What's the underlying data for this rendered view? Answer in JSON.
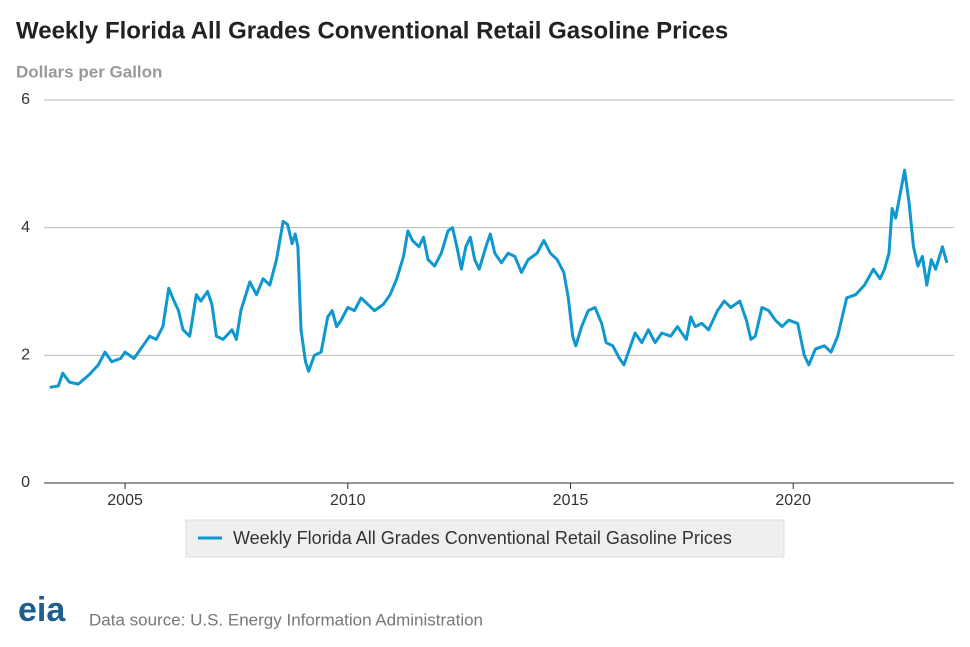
{
  "chart_data": {
    "type": "line",
    "title": "Weekly Florida All Grades Conventional Retail Gasoline Prices",
    "subtitle": "Dollars per Gallon",
    "x": [
      2003.31,
      2003.5,
      2003.6,
      2003.75,
      2003.95,
      2004.2,
      2004.4,
      2004.55,
      2004.7,
      2004.9,
      2005.0,
      2005.2,
      2005.4,
      2005.55,
      2005.7,
      2005.85,
      2005.98,
      2006.1,
      2006.2,
      2006.3,
      2006.45,
      2006.6,
      2006.7,
      2006.85,
      2006.95,
      2007.05,
      2007.2,
      2007.4,
      2007.5,
      2007.6,
      2007.8,
      2007.95,
      2008.1,
      2008.25,
      2008.4,
      2008.55,
      2008.65,
      2008.75,
      2008.82,
      2008.88,
      2008.95,
      2009.05,
      2009.12,
      2009.25,
      2009.4,
      2009.55,
      2009.65,
      2009.75,
      2009.85,
      2010.0,
      2010.15,
      2010.3,
      2010.45,
      2010.6,
      2010.8,
      2010.95,
      2011.1,
      2011.25,
      2011.35,
      2011.45,
      2011.6,
      2011.7,
      2011.8,
      2011.95,
      2012.1,
      2012.25,
      2012.35,
      2012.45,
      2012.55,
      2012.65,
      2012.75,
      2012.85,
      2012.95,
      2013.1,
      2013.2,
      2013.3,
      2013.45,
      2013.6,
      2013.75,
      2013.9,
      2014.05,
      2014.25,
      2014.4,
      2014.55,
      2014.7,
      2014.85,
      2014.95,
      2015.05,
      2015.12,
      2015.25,
      2015.4,
      2015.55,
      2015.7,
      2015.8,
      2015.95,
      2016.1,
      2016.2,
      2016.3,
      2016.45,
      2016.6,
      2016.75,
      2016.9,
      2017.05,
      2017.25,
      2017.4,
      2017.6,
      2017.7,
      2017.8,
      2017.95,
      2018.1,
      2018.3,
      2018.45,
      2018.6,
      2018.8,
      2018.95,
      2019.05,
      2019.15,
      2019.3,
      2019.45,
      2019.6,
      2019.75,
      2019.9,
      2020.1,
      2020.25,
      2020.35,
      2020.5,
      2020.7,
      2020.85,
      2021.0,
      2021.2,
      2021.4,
      2021.6,
      2021.8,
      2021.95,
      2022.05,
      2022.15,
      2022.22,
      2022.3,
      2022.42,
      2022.5,
      2022.6,
      2022.7,
      2022.8,
      2022.9,
      2023.0,
      2023.1,
      2023.2,
      2023.35,
      2023.45
    ],
    "series": [
      {
        "name": "Weekly Florida All Grades Conventional Retail Gasoline Prices",
        "color": "#0f97cf",
        "values": [
          1.5,
          1.52,
          1.72,
          1.58,
          1.55,
          1.7,
          1.85,
          2.05,
          1.9,
          1.95,
          2.05,
          1.95,
          2.15,
          2.3,
          2.25,
          2.45,
          3.05,
          2.85,
          2.7,
          2.4,
          2.3,
          2.95,
          2.85,
          3.0,
          2.8,
          2.3,
          2.25,
          2.4,
          2.25,
          2.7,
          3.15,
          2.95,
          3.2,
          3.1,
          3.5,
          4.1,
          4.05,
          3.75,
          3.9,
          3.7,
          2.4,
          1.9,
          1.75,
          2.0,
          2.05,
          2.6,
          2.7,
          2.45,
          2.55,
          2.75,
          2.7,
          2.9,
          2.8,
          2.7,
          2.8,
          2.95,
          3.2,
          3.55,
          3.95,
          3.8,
          3.7,
          3.85,
          3.5,
          3.4,
          3.6,
          3.95,
          4.0,
          3.7,
          3.35,
          3.7,
          3.85,
          3.5,
          3.35,
          3.7,
          3.9,
          3.6,
          3.45,
          3.6,
          3.55,
          3.3,
          3.5,
          3.6,
          3.8,
          3.6,
          3.5,
          3.3,
          2.9,
          2.3,
          2.15,
          2.45,
          2.7,
          2.75,
          2.5,
          2.2,
          2.15,
          1.95,
          1.85,
          2.05,
          2.35,
          2.2,
          2.4,
          2.2,
          2.35,
          2.3,
          2.45,
          2.25,
          2.6,
          2.45,
          2.5,
          2.4,
          2.7,
          2.85,
          2.75,
          2.85,
          2.55,
          2.25,
          2.3,
          2.75,
          2.7,
          2.55,
          2.45,
          2.55,
          2.5,
          2.0,
          1.85,
          2.1,
          2.15,
          2.05,
          2.3,
          2.9,
          2.95,
          3.1,
          3.35,
          3.2,
          3.35,
          3.6,
          4.3,
          4.15,
          4.6,
          4.9,
          4.4,
          3.7,
          3.4,
          3.55,
          3.1,
          3.5,
          3.35,
          3.7,
          3.45
        ]
      }
    ],
    "xlim": [
      2003.18,
      2023.61
    ],
    "xticks": [
      2005,
      2010,
      2015,
      2020
    ],
    "ylim": [
      0,
      6
    ],
    "yticks": [
      0,
      2,
      4,
      6
    ],
    "grid": true
  },
  "logo": "eia",
  "source": "Data source: U.S. Energy Information Administration"
}
